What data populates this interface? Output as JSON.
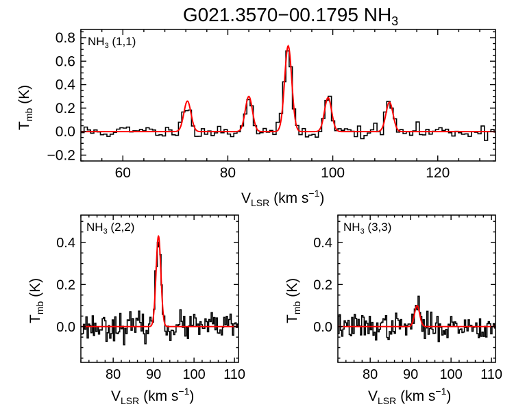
{
  "figure": {
    "title_main": "G021.3570−00.1795 NH",
    "title_sub": "3"
  },
  "axis_text": {
    "ylabel_T": "T",
    "ylabel_mb": "mb",
    "ylabel_unit": " (K)",
    "xlabel_V": "V",
    "xlabel_LSR": "LSR",
    "xlabel_unit": " (km s",
    "xlabel_exp": "−1",
    "xlabel_close": ")"
  },
  "colors": {
    "observed": "#000000",
    "model": "#ff0000"
  },
  "chart_data": [
    {
      "type": "line",
      "panel": "NH3 (1,1)",
      "label_main": "NH",
      "label_sub": "3",
      "label_rest": " (1,1)",
      "xlabel": "V_LSR (km s^-1)",
      "ylabel": "T_mb (K)",
      "xlim": [
        52,
        131
      ],
      "ylim": [
        -0.25,
        0.87
      ],
      "xticks": [
        60,
        80,
        100,
        120
      ],
      "yticks": [
        -0.2,
        0.0,
        0.2,
        0.4,
        0.6,
        0.8
      ],
      "ytick_labels": [
        "−0.2",
        "0.0",
        "0.2",
        "0.4",
        "0.6",
        "0.8"
      ],
      "channel_width": 0.62,
      "noise_rms": 0.03,
      "noise_seed": 11,
      "model_components": [
        {
          "center": 72.3,
          "amplitude": 0.26,
          "fwhm": 1.6
        },
        {
          "center": 84.0,
          "amplitude": 0.3,
          "fwhm": 1.6
        },
        {
          "center": 91.5,
          "amplitude": 0.73,
          "fwhm": 1.6
        },
        {
          "center": 99.1,
          "amplitude": 0.29,
          "fwhm": 1.6
        },
        {
          "center": 110.8,
          "amplitude": 0.25,
          "fwhm": 1.6
        }
      ]
    },
    {
      "type": "line",
      "panel": "NH3 (2,2)",
      "label_main": "NH",
      "label_sub": "3",
      "label_rest": " (2,2)",
      "xlabel": "V_LSR (km s^-1)",
      "ylabel": "T_mb (K)",
      "xlim": [
        72,
        111
      ],
      "ylim": [
        -0.17,
        0.53
      ],
      "xticks": [
        80,
        90,
        100,
        110
      ],
      "yticks": [
        0.0,
        0.2,
        0.4
      ],
      "ytick_labels": [
        "0.0",
        "0.2",
        "0.4"
      ],
      "channel_width": 0.31,
      "noise_rms": 0.032,
      "noise_seed": 23,
      "model_components": [
        {
          "center": 91.2,
          "amplitude": 0.43,
          "fwhm": 1.4
        }
      ]
    },
    {
      "type": "line",
      "panel": "NH3 (3,3)",
      "label_main": "NH",
      "label_sub": "3",
      "label_rest": " (3,3)",
      "xlabel": "V_LSR (km s^-1)",
      "ylabel": "T_mb (K)",
      "xlim": [
        72,
        111
      ],
      "ylim": [
        -0.17,
        0.53
      ],
      "xticks": [
        80,
        90,
        100,
        110
      ],
      "yticks": [
        0.0,
        0.2,
        0.4
      ],
      "ytick_labels": [
        "0.0",
        "0.2",
        "0.4"
      ],
      "channel_width": 0.31,
      "noise_rms": 0.03,
      "noise_seed": 37,
      "model_components": [
        {
          "center": 91.6,
          "amplitude": 0.1,
          "fwhm": 1.5
        }
      ]
    }
  ]
}
